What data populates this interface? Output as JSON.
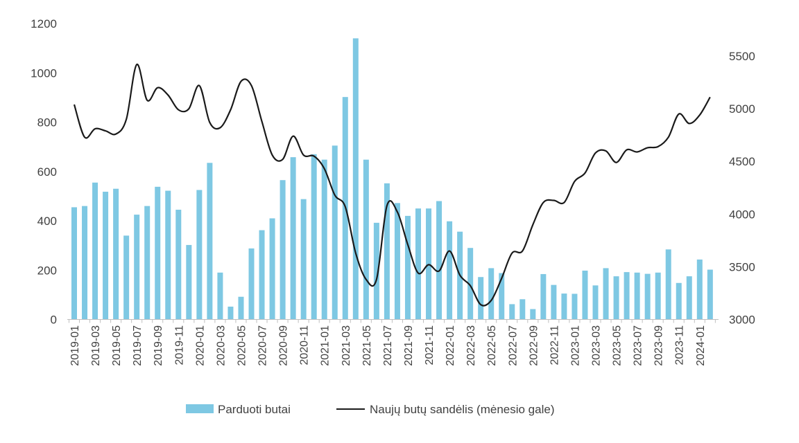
{
  "chart_data": {
    "type": "bar+line",
    "title": "",
    "xlabel": "",
    "ylabel_left": "",
    "ylabel_right": "",
    "ylim_left": [
      0,
      1200
    ],
    "yticks_left": [
      0,
      200,
      400,
      600,
      800,
      1000,
      1200
    ],
    "ylim_right": [
      3000,
      5800
    ],
    "yticks_right": [
      3000,
      3500,
      4000,
      4500,
      5000,
      5500
    ],
    "grid": false,
    "legend_position": "bottom",
    "categories": [
      "2019-01",
      "2019-02",
      "2019-03",
      "2019-04",
      "2019-05",
      "2019-06",
      "2019-07",
      "2019-08",
      "2019-09",
      "2019-10",
      "2019-11",
      "2019-12",
      "2020-01",
      "2020-02",
      "2020-03",
      "2020-04",
      "2020-05",
      "2020-06",
      "2020-07",
      "2020-08",
      "2020-09",
      "2020-10",
      "2020-11",
      "2020-12",
      "2021-01",
      "2021-02",
      "2021-03",
      "2021-04",
      "2021-05",
      "2021-06",
      "2021-07",
      "2021-08",
      "2021-09",
      "2021-10",
      "2021-11",
      "2021-12",
      "2022-01",
      "2022-02",
      "2022-03",
      "2022-04",
      "2022-05",
      "2022-06",
      "2022-07",
      "2022-08",
      "2022-09",
      "2022-10",
      "2022-11",
      "2022-12",
      "2023-01",
      "2023-02",
      "2023-03",
      "2023-04",
      "2023-05",
      "2023-06",
      "2023-07",
      "2023-08",
      "2023-09",
      "2023-10",
      "2023-11",
      "2023-12",
      "2024-01",
      "2024-02"
    ],
    "x_tick_labels": [
      "2019-01",
      "2019-03",
      "2019-05",
      "2019-07",
      "2019-09",
      "2019-11",
      "2020-01",
      "2020-03",
      "2020-05",
      "2020-07",
      "2020-09",
      "2020-11",
      "2021-01",
      "2021-03",
      "2021-05",
      "2021-07",
      "2021-09",
      "2021-11",
      "2022-01",
      "2022-03",
      "2022-05",
      "2022-07",
      "2022-09",
      "2022-11",
      "2023-01",
      "2023-03",
      "2023-05",
      "2023-07",
      "2023-09",
      "2023-11",
      "2024-01"
    ],
    "series": [
      {
        "name": "Parduoti butai",
        "type": "bar",
        "axis": "left",
        "color": "#7ec8e3",
        "values": [
          455,
          460,
          555,
          518,
          530,
          340,
          425,
          460,
          538,
          522,
          445,
          302,
          525,
          635,
          190,
          52,
          92,
          288,
          362,
          410,
          565,
          658,
          488,
          670,
          648,
          705,
          902,
          1140,
          648,
          392,
          552,
          472,
          420,
          450,
          450,
          480,
          398,
          356,
          290,
          172,
          208,
          188,
          62,
          82,
          42,
          184,
          140,
          105,
          104,
          198,
          138,
          208,
          175,
          192,
          190,
          185,
          190,
          284,
          148,
          175,
          243,
          202
        ]
      },
      {
        "name": "Naujų butų sandėlis (mėnesio gale)",
        "type": "line",
        "axis": "right",
        "color": "#1a1a1a",
        "values": [
          5040,
          4730,
          4810,
          4790,
          4760,
          4900,
          5420,
          5080,
          5200,
          5130,
          4990,
          5000,
          5220,
          4870,
          4820,
          4990,
          5260,
          5220,
          4880,
          4560,
          4520,
          4740,
          4560,
          4550,
          4430,
          4180,
          4070,
          3630,
          3380,
          3380,
          4080,
          4020,
          3710,
          3440,
          3520,
          3460,
          3650,
          3420,
          3320,
          3140,
          3180,
          3390,
          3630,
          3650,
          3900,
          4110,
          4130,
          4110,
          4310,
          4390,
          4580,
          4600,
          4490,
          4610,
          4590,
          4630,
          4640,
          4730,
          4950,
          4860,
          4940,
          5110
        ]
      }
    ]
  }
}
